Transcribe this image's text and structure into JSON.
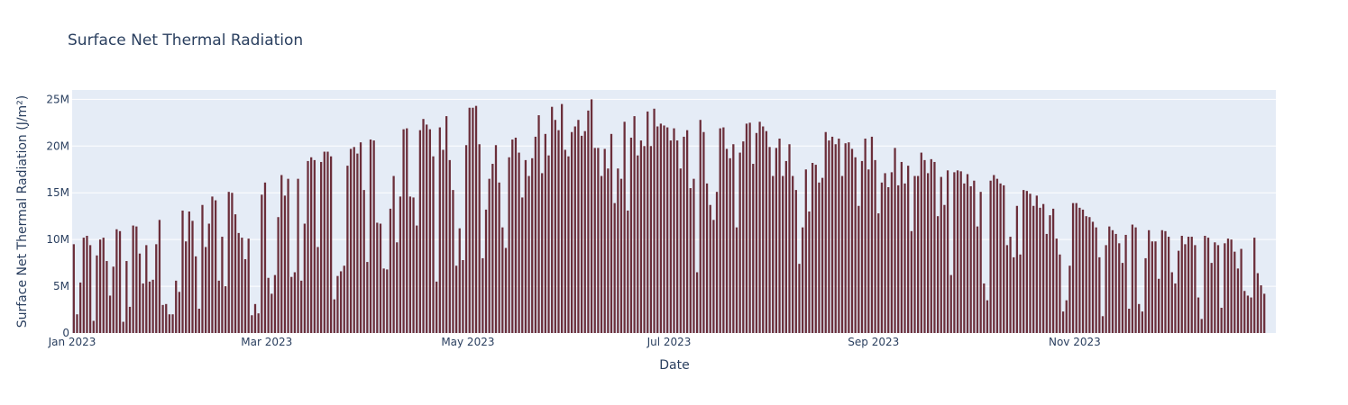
{
  "chart_data": {
    "type": "bar",
    "title": "Surface Net Thermal Radiation",
    "xlabel": "Date",
    "ylabel": "Surface Net Thermal Radiation (J/m²)",
    "x_start": "2023-01-01",
    "x_end": "2023-12-31",
    "x_ticks": [
      {
        "date": "2023-01-01",
        "label": "Jan 2023"
      },
      {
        "date": "2023-03-01",
        "label": "Mar 2023"
      },
      {
        "date": "2023-05-01",
        "label": "May 2023"
      },
      {
        "date": "2023-07-01",
        "label": "Jul 2023"
      },
      {
        "date": "2023-09-01",
        "label": "Sep 2023"
      },
      {
        "date": "2023-11-01",
        "label": "Nov 2023"
      }
    ],
    "ylim": [
      0,
      26000000
    ],
    "y_ticks": [
      {
        "value": 0,
        "label": "0"
      },
      {
        "value": 5000000,
        "label": "5M"
      },
      {
        "value": 10000000,
        "label": "10M"
      },
      {
        "value": 15000000,
        "label": "15M"
      },
      {
        "value": 20000000,
        "label": "20M"
      },
      {
        "value": 25000000,
        "label": "25M"
      }
    ],
    "grid": true,
    "colors": {
      "bar": "#6b2e3a",
      "plot_bg": "#e5ecf6",
      "grid": "#ffffff",
      "text": "#2a3f5f"
    },
    "values": [
      9.5,
      2.0,
      5.4,
      10.2,
      10.4,
      9.4,
      1.3,
      8.3,
      10.0,
      10.2,
      7.7,
      4.0,
      7.1,
      11.1,
      10.9,
      1.2,
      7.7,
      2.8,
      11.5,
      11.4,
      8.5,
      5.3,
      9.4,
      5.5,
      5.7,
      9.5,
      12.1,
      3.0,
      3.1,
      2.0,
      2.0,
      5.6,
      4.4,
      13.1,
      9.8,
      13.0,
      12.0,
      8.2,
      2.6,
      13.7,
      9.2,
      11.7,
      14.6,
      14.2,
      5.6,
      10.3,
      5.0,
      15.1,
      15.0,
      12.7,
      10.7,
      10.2,
      7.9,
      10.1,
      1.9,
      3.1,
      2.1,
      14.8,
      16.1,
      5.9,
      4.2,
      6.2,
      12.4,
      16.9,
      14.7,
      16.5,
      6.0,
      6.5,
      16.5,
      5.6,
      11.7,
      18.4,
      18.8,
      18.5,
      9.2,
      18.3,
      19.4,
      19.4,
      18.9,
      3.6,
      6.1,
      6.6,
      7.2,
      17.9,
      19.7,
      19.9,
      19.2,
      20.4,
      15.3,
      7.6,
      20.7,
      20.6,
      11.8,
      11.7,
      6.9,
      6.8,
      13.3,
      16.8,
      9.7,
      14.6,
      21.8,
      21.9,
      14.6,
      14.5,
      11.5,
      21.7,
      22.9,
      22.3,
      21.8,
      18.9,
      5.5,
      22.0,
      19.6,
      23.2,
      18.5,
      15.3,
      7.2,
      11.2,
      7.8,
      20.1,
      24.1,
      24.1,
      24.3,
      20.2,
      8.0,
      13.2,
      16.5,
      18.1,
      20.1,
      16.1,
      11.3,
      9.1,
      18.8,
      20.7,
      20.9,
      19.3,
      14.5,
      18.5,
      16.8,
      18.7,
      21.0,
      23.3,
      17.1,
      21.3,
      19.0,
      24.2,
      22.8,
      21.7,
      24.5,
      19.6,
      18.9,
      21.5,
      22.1,
      22.8,
      21.1,
      21.6,
      23.8,
      25.0,
      19.8,
      19.8,
      16.8,
      19.7,
      17.6,
      21.3,
      13.9,
      17.6,
      16.5,
      22.6,
      13.1,
      20.9,
      23.2,
      19.0,
      20.6,
      20.0,
      23.7,
      20.0,
      24.0,
      22.1,
      22.4,
      22.2,
      22.0,
      20.6,
      21.9,
      20.6,
      17.6,
      21.0,
      21.7,
      15.5,
      16.5,
      6.5,
      22.8,
      21.5,
      16.0,
      13.7,
      12.1,
      15.1,
      21.9,
      22.0,
      19.7,
      18.7,
      20.2,
      11.3,
      19.3,
      20.5,
      22.4,
      22.5,
      18.1,
      21.4,
      22.6,
      22.1,
      21.6,
      19.9,
      16.8,
      19.8,
      20.8,
      16.8,
      18.4,
      20.2,
      16.8,
      15.3,
      7.4,
      11.3,
      17.5,
      13.0,
      18.2,
      18.0,
      16.1,
      16.6,
      21.5,
      20.6,
      21.0,
      20.2,
      20.8,
      16.8,
      20.3,
      20.4,
      19.7,
      18.8,
      13.6,
      18.4,
      20.8,
      17.5,
      21.0,
      18.5,
      12.8,
      16.1,
      17.1,
      15.6,
      17.2,
      19.8,
      15.8,
      18.3,
      16.0,
      17.9,
      10.9,
      16.8,
      16.8,
      19.3,
      18.5,
      17.1,
      18.6,
      18.3,
      12.5,
      16.7,
      13.7,
      17.4,
      6.2,
      17.2,
      17.4,
      17.3,
      16.0,
      17.0,
      15.7,
      16.3,
      11.4,
      15.1,
      5.3,
      3.5,
      16.3,
      16.9,
      16.5,
      16.0,
      15.8,
      9.4,
      10.3,
      8.1,
      13.6,
      8.4,
      15.3,
      15.2,
      14.9,
      13.6,
      14.7,
      13.4,
      13.8,
      10.6,
      12.6,
      13.3,
      10.1,
      8.4,
      2.3,
      3.5,
      7.2,
      13.9,
      13.9,
      13.4,
      13.2,
      12.5,
      12.4,
      11.9,
      11.3,
      8.1,
      1.8,
      9.4,
      11.4,
      11.0,
      10.6,
      9.6,
      7.5,
      10.5,
      2.6,
      11.6,
      11.3,
      3.1,
      2.3,
      8.0,
      11.0,
      9.8,
      9.8,
      5.8,
      11.0,
      10.9,
      10.3,
      6.5,
      5.3,
      8.8,
      10.4,
      9.5,
      10.3,
      10.3,
      9.4,
      3.8,
      1.5,
      10.4,
      10.2,
      7.5,
      9.7,
      9.4,
      2.7,
      9.6,
      10.1,
      10.0,
      8.7,
      6.9,
      9.0,
      4.5,
      4.0,
      3.8,
      10.2,
      6.4,
      5.1,
      4.2
    ],
    "value_unit_multiplier": 1000000
  }
}
